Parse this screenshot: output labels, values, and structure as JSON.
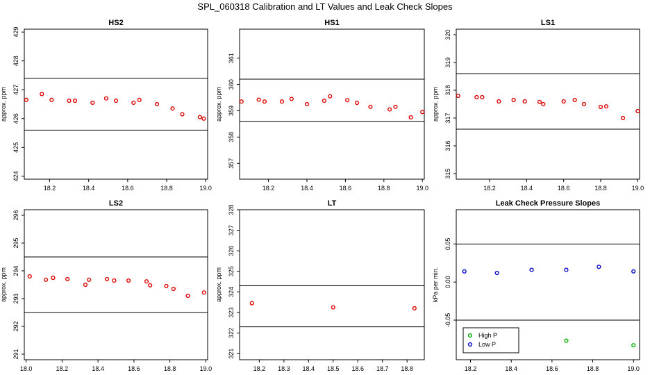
{
  "figure_title": "SPL_060318  Calibration and LT Values and Leak Check Slopes",
  "chart_data": [
    {
      "type": "scatter",
      "title": "HS2",
      "ylabel": "approx. ppm",
      "xlim": [
        18.07,
        19.01
      ],
      "ylim": [
        423.9,
        429.1
      ],
      "xticks": [
        18.2,
        18.4,
        18.6,
        18.8,
        19.0
      ],
      "xtick_labels": [
        "18.2",
        "18.4",
        "18.6",
        "18.8",
        "19.0"
      ],
      "yticks": [
        424,
        425,
        426,
        427,
        428,
        429
      ],
      "ytick_labels": [
        "424",
        "425",
        "426",
        "427",
        "428",
        "429"
      ],
      "hlines": [
        427.4,
        425.6
      ],
      "series": [
        {
          "color": "#e00000",
          "x": [
            18.08,
            18.16,
            18.21,
            18.3,
            18.33,
            18.42,
            18.49,
            18.54,
            18.63,
            18.66,
            18.75,
            18.83,
            18.88,
            18.97,
            18.99
          ],
          "y": [
            426.65,
            426.85,
            426.65,
            426.62,
            426.62,
            426.55,
            426.7,
            426.62,
            426.55,
            426.65,
            426.5,
            426.35,
            426.15,
            426.05,
            426.0
          ]
        }
      ]
    },
    {
      "type": "scatter",
      "title": "HS1",
      "ylabel": "approx. ppm",
      "xlim": [
        18.05,
        19.01
      ],
      "ylim": [
        356.4,
        362.1
      ],
      "xticks": [
        18.2,
        18.4,
        18.6,
        18.8,
        19.0
      ],
      "xtick_labels": [
        "18.2",
        "18.4",
        "18.6",
        "18.8",
        "19.0"
      ],
      "yticks": [
        357,
        358,
        359,
        360,
        361
      ],
      "ytick_labels": [
        "357",
        "358",
        "359",
        "360",
        "361"
      ],
      "hlines": [
        360.2,
        358.6
      ],
      "series": [
        {
          "color": "#e00000",
          "x": [
            18.06,
            18.15,
            18.18,
            18.27,
            18.32,
            18.4,
            18.49,
            18.52,
            18.61,
            18.66,
            18.73,
            18.83,
            18.86,
            18.94,
            19.0
          ],
          "y": [
            359.35,
            359.42,
            359.35,
            359.35,
            359.45,
            359.25,
            359.38,
            359.55,
            359.4,
            359.3,
            359.15,
            359.05,
            359.15,
            358.75,
            358.95
          ]
        }
      ]
    },
    {
      "type": "scatter",
      "title": "LS1",
      "ylabel": "approx. ppm",
      "xlim": [
        18.02,
        19.01
      ],
      "ylim": [
        314.8,
        320.2
      ],
      "xticks": [
        18.2,
        18.4,
        18.6,
        18.8,
        19.0
      ],
      "xtick_labels": [
        "18.2",
        "18.4",
        "18.6",
        "18.8",
        "19.0"
      ],
      "yticks": [
        315,
        316,
        317,
        318,
        319,
        320
      ],
      "ytick_labels": [
        "315",
        "316",
        "317",
        "318",
        "319",
        "320"
      ],
      "hlines": [
        318.6,
        316.6
      ],
      "series": [
        {
          "color": "#e00000",
          "x": [
            18.03,
            18.13,
            18.16,
            18.25,
            18.33,
            18.39,
            18.47,
            18.49,
            18.6,
            18.66,
            18.71,
            18.8,
            18.83,
            18.92,
            19.0
          ],
          "y": [
            317.8,
            317.75,
            317.75,
            317.6,
            317.65,
            317.6,
            317.58,
            317.5,
            317.6,
            317.65,
            317.5,
            317.4,
            317.42,
            317.0,
            317.25
          ]
        }
      ]
    },
    {
      "type": "scatter",
      "title": "LS2",
      "ylabel": "approx. ppm",
      "xlim": [
        17.99,
        19.01
      ],
      "ylim": [
        290.8,
        296.2
      ],
      "xticks": [
        18.0,
        18.2,
        18.4,
        18.6,
        18.8,
        19.0
      ],
      "xtick_labels": [
        "18.0",
        "18.2",
        "18.4",
        "18.6",
        "18.8",
        "19.0"
      ],
      "yticks": [
        291,
        292,
        293,
        294,
        295,
        296
      ],
      "ytick_labels": [
        "291",
        "292",
        "293",
        "294",
        "295",
        "296"
      ],
      "hlines": [
        294.5,
        292.5
      ],
      "series": [
        {
          "color": "#e00000",
          "x": [
            18.02,
            18.11,
            18.15,
            18.23,
            18.33,
            18.35,
            18.45,
            18.49,
            18.57,
            18.67,
            18.69,
            18.78,
            18.82,
            18.9,
            18.99
          ],
          "y": [
            293.8,
            293.68,
            293.75,
            293.7,
            293.5,
            293.68,
            293.7,
            293.65,
            293.65,
            293.62,
            293.48,
            293.45,
            293.35,
            293.1,
            293.22
          ]
        }
      ]
    },
    {
      "type": "scatter",
      "title": "LT",
      "ylabel": "approx. ppm",
      "xlim": [
        18.12,
        18.87
      ],
      "ylim": [
        320.7,
        328.0
      ],
      "xticks": [
        18.2,
        18.3,
        18.4,
        18.5,
        18.6,
        18.7,
        18.8
      ],
      "xtick_labels": [
        "18.2",
        "18.3",
        "18.4",
        "18.5",
        "18.6",
        "18.7",
        "18.8"
      ],
      "yticks": [
        321,
        322,
        323,
        324,
        325,
        326,
        327,
        328
      ],
      "ytick_labels": [
        "321",
        "322",
        "323",
        "324",
        "325",
        "326",
        "327",
        "328"
      ],
      "hlines": [
        324.3,
        322.3
      ],
      "series": [
        {
          "color": "#e00000",
          "x": [
            18.17,
            18.5,
            18.83
          ],
          "y": [
            323.45,
            323.25,
            323.2
          ]
        }
      ]
    },
    {
      "type": "scatter",
      "title": "Leak Check Pressure Slopes",
      "ylabel": "kPa per min.",
      "xlim": [
        18.13,
        19.03
      ],
      "ylim": [
        -0.102,
        0.095
      ],
      "xticks": [
        18.2,
        18.4,
        18.6,
        18.8,
        19.0
      ],
      "xtick_labels": [
        "18.2",
        "18.4",
        "18.6",
        "18.8",
        "19.0"
      ],
      "yticks": [
        -0.05,
        0.0,
        0.05
      ],
      "ytick_labels": [
        "-0.05",
        "0.00",
        "0.05"
      ],
      "hlines": [
        0.05,
        -0.05
      ],
      "legend_position": "bottom-left",
      "series": [
        {
          "name": "High P",
          "color": "#00b000",
          "x": [
            18.33,
            18.67,
            19.0
          ],
          "y": [
            -0.08,
            -0.077,
            -0.083
          ]
        },
        {
          "name": "Low P",
          "color": "#0000cc",
          "x": [
            18.17,
            18.33,
            18.5,
            18.67,
            18.83,
            19.0
          ],
          "y": [
            0.014,
            0.012,
            0.016,
            0.016,
            0.02,
            0.014
          ]
        }
      ]
    }
  ]
}
